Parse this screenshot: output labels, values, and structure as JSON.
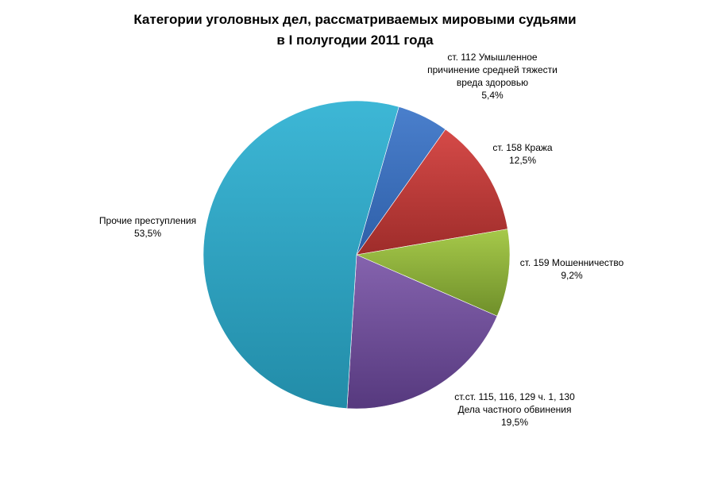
{
  "chart_data": {
    "type": "pie",
    "title_lines": [
      "Категории уголовных дел, рассматриваемых мировыми судьями",
      "в I полугодии 2011 года"
    ],
    "slices": [
      {
        "label_lines": [
          "ст. 112 Умышленное",
          "причинение средней тяжести",
          "вреда здоровью"
        ],
        "value": 5.4,
        "value_label": "5,4%",
        "color": "#4A7FCC",
        "color_dark": "#2E5FA8"
      },
      {
        "label_lines": [
          "ст. 158 Кража"
        ],
        "value": 12.5,
        "value_label": "12,5%",
        "color": "#D54A48",
        "color_dark": "#9E2C2A"
      },
      {
        "label_lines": [
          "ст. 159 Мошенничество"
        ],
        "value": 9.2,
        "value_label": "9,2%",
        "color": "#A6C94A",
        "color_dark": "#6F8F2A"
      },
      {
        "label_lines": [
          "ст.ст. 115, 116, 129 ч. 1, 130",
          "Дела частного обвинения"
        ],
        "value": 19.5,
        "value_label": "19,5%",
        "color": "#8563AE",
        "color_dark": "#56397E"
      },
      {
        "label_lines": [
          "Прочие преступления"
        ],
        "value": 53.5,
        "value_label": "53,5%",
        "color": "#3DB7D6",
        "color_dark": "#228CA8"
      }
    ]
  }
}
